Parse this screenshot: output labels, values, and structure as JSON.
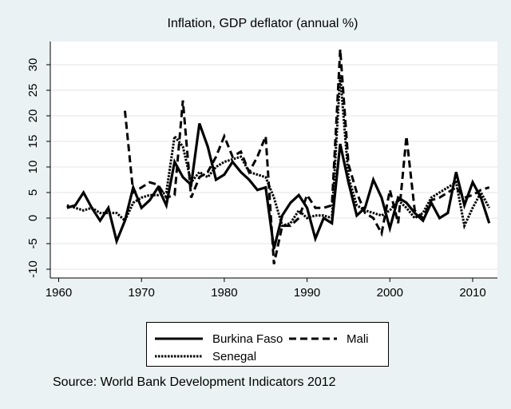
{
  "chart_data": {
    "type": "line",
    "title": "Inflation, GDP deflator (annual %)",
    "xlabel": "",
    "ylabel": "",
    "xlim": [
      1960,
      2012
    ],
    "ylim": [
      -10,
      30
    ],
    "xticks": [
      1960,
      1970,
      1980,
      1990,
      2000,
      2010
    ],
    "yticks": [
      -10,
      -5,
      0,
      5,
      10,
      15,
      20,
      25,
      30
    ],
    "grid": true,
    "legend_position": "bottom",
    "series": [
      {
        "name": "Burkina Faso",
        "style": "solid",
        "x": [
          1961,
          1962,
          1963,
          1964,
          1965,
          1966,
          1967,
          1968,
          1969,
          1970,
          1971,
          1972,
          1973,
          1974,
          1975,
          1976,
          1977,
          1978,
          1979,
          1980,
          1981,
          1982,
          1983,
          1984,
          1985,
          1986,
          1987,
          1988,
          1989,
          1990,
          1991,
          1992,
          1993,
          1994,
          1995,
          1996,
          1997,
          1998,
          1999,
          2000,
          2001,
          2002,
          2003,
          2004,
          2005,
          2006,
          2007,
          2008,
          2009,
          2010,
          2011,
          2012
        ],
        "y": [
          2,
          2.5,
          5,
          2,
          -0.5,
          2,
          -4.5,
          -0.5,
          6,
          2,
          3.5,
          6,
          2.5,
          11,
          8,
          6.5,
          18.5,
          14,
          7.5,
          8.5,
          11,
          9,
          7.5,
          5.5,
          6,
          -6,
          0.5,
          3,
          4.5,
          2,
          -4,
          0,
          -1,
          14.5,
          7,
          0.5,
          2,
          7.5,
          4,
          -2,
          4,
          3,
          1,
          -0.5,
          3,
          0,
          1,
          9,
          2.5,
          7,
          4,
          -1
        ]
      },
      {
        "name": "Mali",
        "style": "dashed",
        "x": [
          1968,
          1969,
          1970,
          1971,
          1972,
          1973,
          1974,
          1975,
          1976,
          1977,
          1978,
          1979,
          1980,
          1981,
          1982,
          1983,
          1984,
          1985,
          1986,
          1987,
          1988,
          1989,
          1990,
          1991,
          1992,
          1993,
          1994,
          1995,
          1996,
          1997,
          1998,
          1999,
          2000,
          2001,
          2002,
          2003,
          2004,
          2005,
          2006,
          2007,
          2008,
          2009,
          2010,
          2011,
          2012
        ],
        "y": [
          21,
          5,
          6,
          7,
          6.5,
          4,
          4.5,
          23,
          4,
          8,
          9,
          12,
          16,
          12,
          13,
          9,
          12,
          16,
          -9,
          -1.5,
          -1.5,
          0,
          4.5,
          2,
          2,
          2.5,
          33,
          10.5,
          5,
          1,
          0,
          -3,
          5.5,
          -1,
          16,
          1.5,
          0,
          3.5,
          4,
          5,
          6,
          4,
          4.5,
          5.5,
          6
        ]
      },
      {
        "name": "Senegal",
        "style": "dotted",
        "x": [
          1961,
          1962,
          1963,
          1964,
          1965,
          1966,
          1967,
          1968,
          1969,
          1970,
          1971,
          1972,
          1973,
          1974,
          1975,
          1976,
          1977,
          1978,
          1979,
          1980,
          1981,
          1982,
          1983,
          1984,
          1985,
          1986,
          1987,
          1988,
          1989,
          1990,
          1991,
          1992,
          1993,
          1994,
          1995,
          1996,
          1997,
          1998,
          1999,
          2000,
          2001,
          2002,
          2003,
          2004,
          2005,
          2006,
          2007,
          2008,
          2009,
          2010,
          2011,
          2012
        ],
        "y": [
          2.5,
          2,
          1.5,
          2,
          1,
          1,
          1,
          -0.5,
          3,
          4,
          4.5,
          4.5,
          5,
          16,
          14,
          7,
          9,
          8,
          10,
          11,
          11.5,
          12,
          9,
          8.5,
          8,
          4,
          -1.5,
          -1,
          1.5,
          0,
          0.5,
          0.5,
          0,
          28,
          8,
          2.5,
          1.5,
          1,
          0.5,
          1.5,
          3.5,
          2,
          0,
          1,
          4,
          5,
          6,
          7,
          -1.5,
          2,
          5,
          2
        ]
      }
    ],
    "note": "Source: World Bank Development Indicators 2012"
  }
}
